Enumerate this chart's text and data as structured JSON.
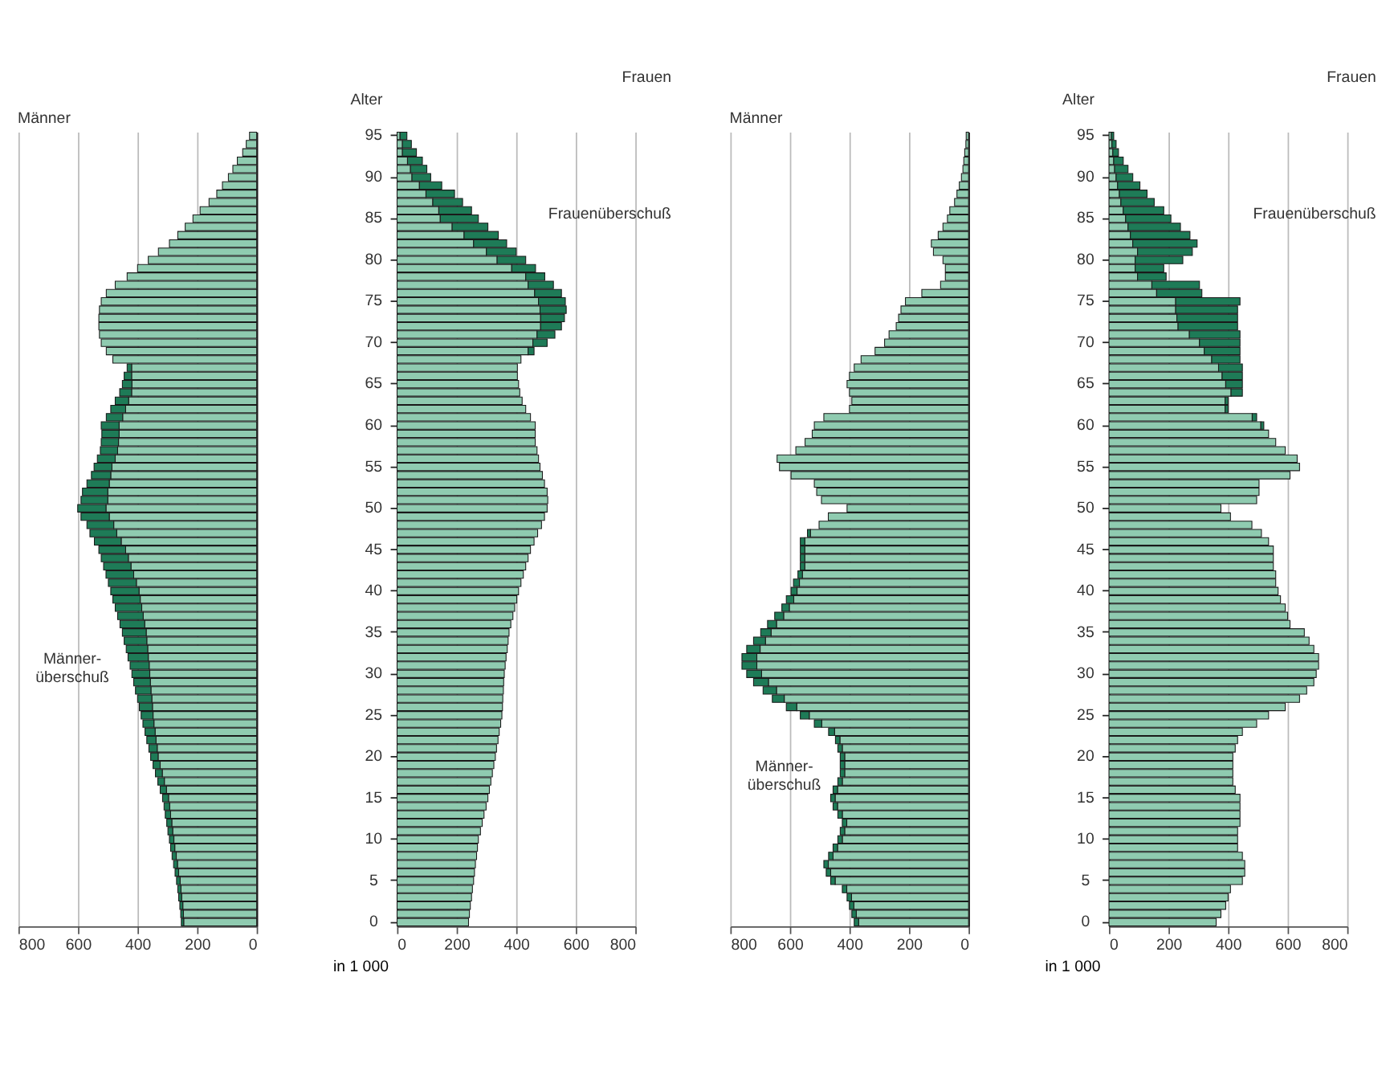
{
  "chart_data": [
    {
      "type": "bar",
      "orientation": "horizontal",
      "stacked": true,
      "title": "Männer",
      "grid": "x",
      "tick_labels": "x",
      "xlim": [
        800,
        0
      ],
      "xticks": [
        800,
        600,
        400,
        200,
        0
      ],
      "categories": [
        "95",
        null,
        null,
        null,
        null,
        "90",
        null,
        null,
        null,
        null,
        "85",
        null,
        null,
        null,
        null,
        "80",
        null,
        null,
        null,
        null,
        "75",
        null,
        null,
        null,
        null,
        "70",
        null,
        null,
        null,
        null,
        "65",
        null,
        null,
        null,
        null,
        "60",
        null,
        null,
        null,
        null,
        "55",
        null,
        null,
        null,
        null,
        "50",
        null,
        null,
        null,
        null,
        "45",
        null,
        null,
        null,
        null,
        "40",
        null,
        null,
        null,
        null,
        "35",
        null,
        null,
        null,
        null,
        "30",
        null,
        null,
        null,
        null,
        "25",
        null,
        null,
        null,
        null,
        "20",
        null,
        null,
        null,
        null,
        "15",
        null,
        null,
        null,
        null,
        "10",
        null,
        null,
        null,
        null,
        "5",
        null,
        null,
        null,
        null,
        "0"
      ],
      "series": [
        {
          "color": "#8fcbb0",
          "values": [
            24,
            35,
            47,
            65,
            80,
            95,
            115,
            134,
            160,
            190,
            214,
            240,
            265,
            293,
            330,
            364,
            400,
            435,
            475,
            505,
            522,
            528,
            530,
            530,
            528,
            522,
            505,
            483,
            420,
            420,
            419,
            420,
            430,
            440,
            450,
            462,
            462,
            464,
            467,
            475,
            486,
            490,
            495,
            500,
            500,
            506,
            495,
            480,
            470,
            455,
            440,
            431,
            422,
            413,
            404,
            395,
            391,
            386,
            381,
            376,
            371,
            369,
            366,
            364,
            361,
            359,
            357,
            355,
            352,
            350,
            348,
            345,
            341,
            338,
            334,
            331,
            324,
            317,
            310,
            303,
            296,
            292,
            289,
            285,
            282,
            278,
            275,
            270,
            266,
            262,
            257,
            254,
            252,
            248,
            246,
            245
          ]
        },
        {
          "color": "#1e7b57",
          "values": [
            null,
            null,
            null,
            null,
            null,
            null,
            null,
            null,
            null,
            null,
            null,
            null,
            null,
            null,
            null,
            null,
            null,
            null,
            null,
            null,
            null,
            null,
            null,
            null,
            null,
            null,
            null,
            null,
            15,
            25,
            32,
            40,
            45,
            50,
            55,
            60,
            58,
            58,
            58,
            60,
            60,
            65,
            75,
            85,
            90,
            95,
            95,
            90,
            90,
            90,
            90,
            91,
            92,
            93,
            94,
            95,
            92,
            89,
            86,
            83,
            80,
            76,
            72,
            68,
            64,
            60,
            56,
            52,
            48,
            44,
            40,
            37,
            34,
            31,
            28,
            25,
            24,
            23,
            22,
            21,
            20,
            19,
            18,
            17,
            16,
            15,
            14,
            14,
            13,
            12,
            12,
            11,
            10,
            10,
            9,
            8
          ]
        }
      ],
      "annotations": [
        "Männer-\nüberschuß"
      ]
    },
    {
      "type": "bar",
      "orientation": "horizontal",
      "stacked": true,
      "title": "Frauen",
      "ylabel": "Alter",
      "xlabel": "in 1 000",
      "grid": "x",
      "xlim": [
        0,
        800
      ],
      "xticks": [
        0,
        200,
        400,
        600,
        800
      ],
      "categories": [
        "95",
        null,
        null,
        null,
        null,
        "90",
        null,
        null,
        null,
        null,
        "85",
        null,
        null,
        null,
        null,
        "80",
        null,
        null,
        null,
        null,
        "75",
        null,
        null,
        null,
        null,
        "70",
        null,
        null,
        null,
        null,
        "65",
        null,
        null,
        null,
        null,
        "60",
        null,
        null,
        null,
        null,
        "55",
        null,
        null,
        null,
        null,
        "50",
        null,
        null,
        null,
        null,
        "45",
        null,
        null,
        null,
        null,
        "40",
        null,
        null,
        null,
        null,
        "35",
        null,
        null,
        null,
        null,
        "30",
        null,
        null,
        null,
        null,
        "25",
        null,
        null,
        null,
        null,
        "20",
        null,
        null,
        null,
        null,
        "15",
        null,
        null,
        null,
        null,
        "10",
        null,
        null,
        null,
        null,
        "5",
        null,
        null,
        null,
        null,
        "0"
      ],
      "series": [
        {
          "color": "#8fcbb0",
          "values": [
            10,
            18,
            18,
            35,
            45,
            50,
            75,
            97,
            120,
            140,
            145,
            185,
            225,
            257,
            300,
            336,
            385,
            432,
            440,
            462,
            475,
            480,
            482,
            482,
            470,
            456,
            440,
            416,
            404,
            404,
            408,
            412,
            420,
            432,
            448,
            464,
            464,
            464,
            470,
            475,
            480,
            488,
            495,
            504,
            506,
            504,
            495,
            485,
            472,
            460,
            448,
            440,
            432,
            424,
            416,
            408,
            402,
            395,
            389,
            382,
            376,
            373,
            370,
            366,
            363,
            360,
            358,
            357,
            355,
            354,
            352,
            348,
            343,
            339,
            334,
            330,
            325,
            320,
            315,
            310,
            305,
            299,
            292,
            286,
            280,
            273,
            270,
            267,
            263,
            260,
            257,
            253,
            250,
            246,
            243,
            240
          ]
        },
        {
          "color": "#1e7b57",
          "values": [
            23,
            30,
            47,
            50,
            55,
            63,
            75,
            96,
            100,
            110,
            128,
            120,
            115,
            111,
            100,
            96,
            80,
            64,
            85,
            90,
            90,
            88,
            80,
            70,
            60,
            48,
            20,
            null,
            null,
            null,
            null,
            null,
            null,
            null,
            null,
            null,
            null,
            null,
            null,
            null,
            null,
            null,
            null,
            null,
            null,
            null,
            null,
            null,
            null,
            null,
            null,
            null,
            null,
            null,
            null,
            null,
            null,
            null,
            null,
            null,
            null,
            null,
            null,
            null,
            null,
            null,
            null,
            null,
            null,
            null,
            null,
            null,
            null,
            null,
            null,
            null,
            null,
            null,
            null,
            null,
            null,
            null,
            null,
            null,
            null,
            null,
            null,
            null,
            null,
            null,
            null,
            null,
            null,
            null,
            null,
            null
          ]
        }
      ],
      "annotations": [
        "Frauenüberschuß"
      ]
    },
    {
      "type": "bar",
      "orientation": "horizontal",
      "stacked": true,
      "title": "Männer",
      "grid": "x",
      "tick_labels": "x",
      "xlim": [
        800,
        0
      ],
      "xticks": [
        800,
        600,
        400,
        200,
        0
      ],
      "categories": [
        "95",
        null,
        null,
        null,
        null,
        "90",
        null,
        null,
        null,
        null,
        "85",
        null,
        null,
        null,
        null,
        "80",
        null,
        null,
        null,
        null,
        "75",
        null,
        null,
        null,
        null,
        "70",
        null,
        null,
        null,
        null,
        "65",
        null,
        null,
        null,
        null,
        "60",
        null,
        null,
        null,
        null,
        "55",
        null,
        null,
        null,
        null,
        "50",
        null,
        null,
        null,
        null,
        "45",
        null,
        null,
        null,
        null,
        "40",
        null,
        null,
        null,
        null,
        "35",
        null,
        null,
        null,
        null,
        "30",
        null,
        null,
        null,
        null,
        "25",
        null,
        null,
        null,
        null,
        "20",
        null,
        null,
        null,
        null,
        "15",
        null,
        null,
        null,
        null,
        "10",
        null,
        null,
        null,
        null,
        "5",
        null,
        null,
        null,
        null,
        "0"
      ],
      "series": [
        {
          "color": "#8fcbb0",
          "values": [
            8,
            9,
            13,
            16,
            19,
            24,
            31,
            39,
            47,
            63,
            71,
            86,
            102,
            125,
            118,
            86,
            78,
            78,
            94,
            157,
            212,
            227,
            235,
            243,
            267,
            282,
            314,
            361,
            384,
            400,
            408,
            400,
            392,
            400,
            486,
            518,
            525,
            549,
            580,
            643,
            635,
            596,
            518,
            510,
            494,
            408,
            471,
            502,
            531,
            550,
            550,
            550,
            550,
            558,
            568,
            576,
            587,
            602,
            621,
            645,
            663,
            682,
            700,
            711,
            711,
            695,
            672,
            645,
            619,
            577,
            535,
            493,
            450,
            432,
            424,
            416,
            416,
            416,
            424,
            440,
            448,
            440,
            424,
            409,
            416,
            424,
            440,
            455,
            471,
            463,
            448,
            409,
            393,
            385,
            377,
            369
          ]
        },
        {
          "color": "#1e7b57",
          "values": [
            null,
            null,
            null,
            null,
            null,
            null,
            null,
            null,
            null,
            null,
            null,
            null,
            null,
            null,
            null,
            null,
            null,
            null,
            null,
            null,
            null,
            null,
            null,
            null,
            null,
            null,
            null,
            null,
            null,
            null,
            null,
            null,
            null,
            null,
            null,
            null,
            null,
            null,
            null,
            null,
            null,
            null,
            null,
            null,
            null,
            null,
            null,
            null,
            10,
            15,
            15,
            15,
            15,
            15,
            20,
            20,
            25,
            25,
            30,
            30,
            35,
            40,
            45,
            50,
            50,
            50,
            50,
            45,
            40,
            35,
            30,
            25,
            20,
            15,
            15,
            15,
            15,
            15,
            15,
            15,
            15,
            15,
            15,
            15,
            15,
            15,
            15,
            15,
            15,
            15,
            15,
            15,
            15,
            15,
            15,
            15
          ]
        }
      ],
      "annotations": [
        "Männer-\nüberschuß"
      ]
    },
    {
      "type": "bar",
      "orientation": "horizontal",
      "stacked": true,
      "title": "Frauen",
      "ylabel": "Alter",
      "xlabel": "in 1 000",
      "grid": "x",
      "xlim": [
        0,
        800
      ],
      "xticks": [
        0,
        200,
        400,
        600,
        800
      ],
      "categories": [
        "95",
        null,
        null,
        null,
        null,
        "90",
        null,
        null,
        null,
        null,
        "85",
        null,
        null,
        null,
        null,
        "80",
        null,
        null,
        null,
        null,
        "75",
        null,
        null,
        null,
        null,
        "70",
        null,
        null,
        null,
        null,
        "65",
        null,
        null,
        null,
        null,
        "60",
        null,
        null,
        null,
        null,
        "55",
        null,
        null,
        null,
        null,
        "50",
        null,
        null,
        null,
        null,
        "45",
        null,
        null,
        null,
        null,
        "40",
        null,
        null,
        null,
        null,
        "35",
        null,
        null,
        null,
        null,
        "30",
        null,
        null,
        null,
        null,
        "25",
        null,
        null,
        null,
        null,
        "20",
        null,
        null,
        null,
        null,
        "15",
        null,
        null,
        null,
        null,
        "10",
        null,
        null,
        null,
        null,
        "5",
        null,
        null,
        null,
        null,
        "0"
      ],
      "series": [
        {
          "color": "#8fcbb0",
          "values": [
            8,
            10,
            13,
            16,
            19,
            24,
            29,
            35,
            40,
            48,
            56,
            64,
            72,
            80,
            96,
            88,
            88,
            96,
            144,
            160,
            224,
            224,
            228,
            232,
            270,
            304,
            320,
            345,
            368,
            380,
            392,
            410,
            390,
            390,
            481,
            510,
            536,
            560,
            592,
            632,
            640,
            608,
            504,
            504,
            496,
            376,
            408,
            480,
            512,
            536,
            552,
            552,
            552,
            560,
            560,
            568,
            576,
            592,
            600,
            608,
            656,
            672,
            688,
            704,
            704,
            696,
            688,
            664,
            640,
            592,
            536,
            496,
            448,
            432,
            424,
            416,
            416,
            416,
            416,
            424,
            440,
            440,
            440,
            440,
            432,
            432,
            432,
            448,
            456,
            456,
            448,
            408,
            400,
            392,
            376,
            360
          ]
        },
        {
          "color": "#1e7b57",
          "values": [
            8,
            14,
            19,
            32,
            45,
            56,
            75,
            93,
            112,
            136,
            152,
            176,
            200,
            216,
            184,
            160,
            96,
            96,
            160,
            152,
            216,
            208,
            204,
            200,
            170,
            136,
            120,
            95,
            80,
            68,
            56,
            38,
            10,
            10,
            15,
            10,
            null,
            null,
            null,
            null,
            null,
            null,
            null,
            null,
            null,
            null,
            null,
            null,
            null,
            null,
            null,
            null,
            null,
            null,
            null,
            null,
            null,
            null,
            null,
            null,
            null,
            null,
            null,
            null,
            null,
            null,
            null,
            null,
            null,
            null,
            null,
            null,
            null,
            null,
            null,
            null,
            null,
            null,
            null,
            null,
            null,
            null,
            null,
            null,
            null,
            null,
            null,
            null,
            null,
            null,
            null,
            null,
            null,
            null,
            null,
            null
          ]
        }
      ],
      "annotations": [
        "Frauenüberschuß"
      ]
    }
  ]
}
